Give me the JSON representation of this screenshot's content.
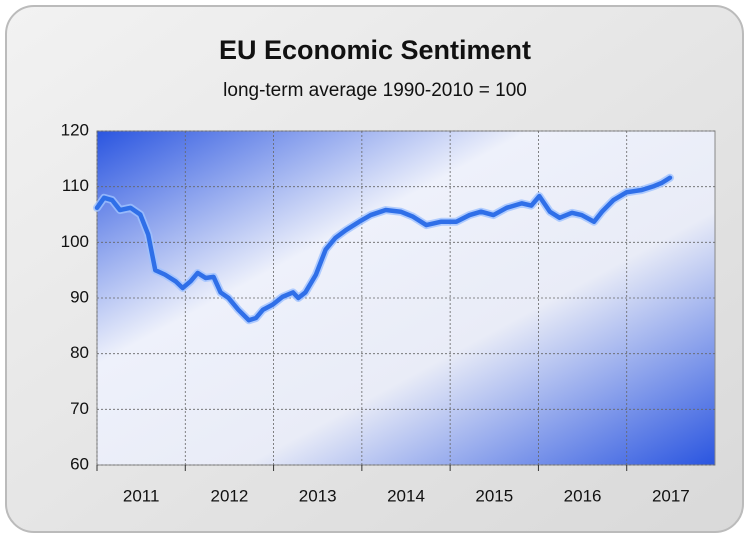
{
  "chart_data": {
    "type": "line",
    "title": "EU Economic Sentiment",
    "subtitle": "long-term average 1990-2010 = 100",
    "series": [
      {
        "name": "EU Economic Sentiment",
        "color": "#2f6fe8",
        "x": [
          2011.0,
          2011.08,
          2011.17,
          2011.26,
          2011.38,
          2011.49,
          2011.58,
          2011.66,
          2011.77,
          2011.89,
          2011.97,
          2012.06,
          2012.14,
          2012.23,
          2012.32,
          2012.4,
          2012.49,
          2012.6,
          2012.72,
          2012.8,
          2012.88,
          2012.99,
          2013.1,
          2013.22,
          2013.28,
          2013.36,
          2013.48,
          2013.59,
          2013.7,
          2013.82,
          2013.97,
          2014.1,
          2014.27,
          2014.44,
          2014.58,
          2014.73,
          2014.9,
          2015.07,
          2015.22,
          2015.35,
          2015.49,
          2015.64,
          2015.81,
          2015.92,
          2016.01,
          2016.13,
          2016.24,
          2016.38,
          2016.49,
          2016.63,
          2016.72,
          2016.85,
          2017.0,
          2017.17,
          2017.31,
          2017.4,
          2017.49
        ],
        "values": [
          106.2,
          108,
          107.6,
          105.8,
          106.2,
          105,
          101.4,
          95,
          94.2,
          93,
          91.8,
          93,
          94.5,
          93.6,
          93.8,
          91,
          90,
          87.9,
          86,
          86.4,
          87.9,
          88.8,
          90.2,
          91,
          90,
          91,
          94.2,
          98.7,
          100.8,
          102.2,
          103.7,
          104.9,
          105.8,
          105.5,
          104.6,
          103.1,
          103.7,
          103.7,
          104.9,
          105.5,
          104.9,
          106.2,
          107,
          106.6,
          108.3,
          105.5,
          104.4,
          105.3,
          104.9,
          103.7,
          105.5,
          107.6,
          109,
          109.4,
          110.1,
          110.7,
          111.6
        ]
      }
    ],
    "xlim": [
      2011,
      2018
    ],
    "xticks": [
      2011,
      2012,
      2013,
      2014,
      2015,
      2016,
      2017
    ],
    "ylim": [
      60,
      120
    ],
    "yticks": [
      60,
      70,
      80,
      90,
      100,
      110,
      120
    ],
    "grid": true
  }
}
